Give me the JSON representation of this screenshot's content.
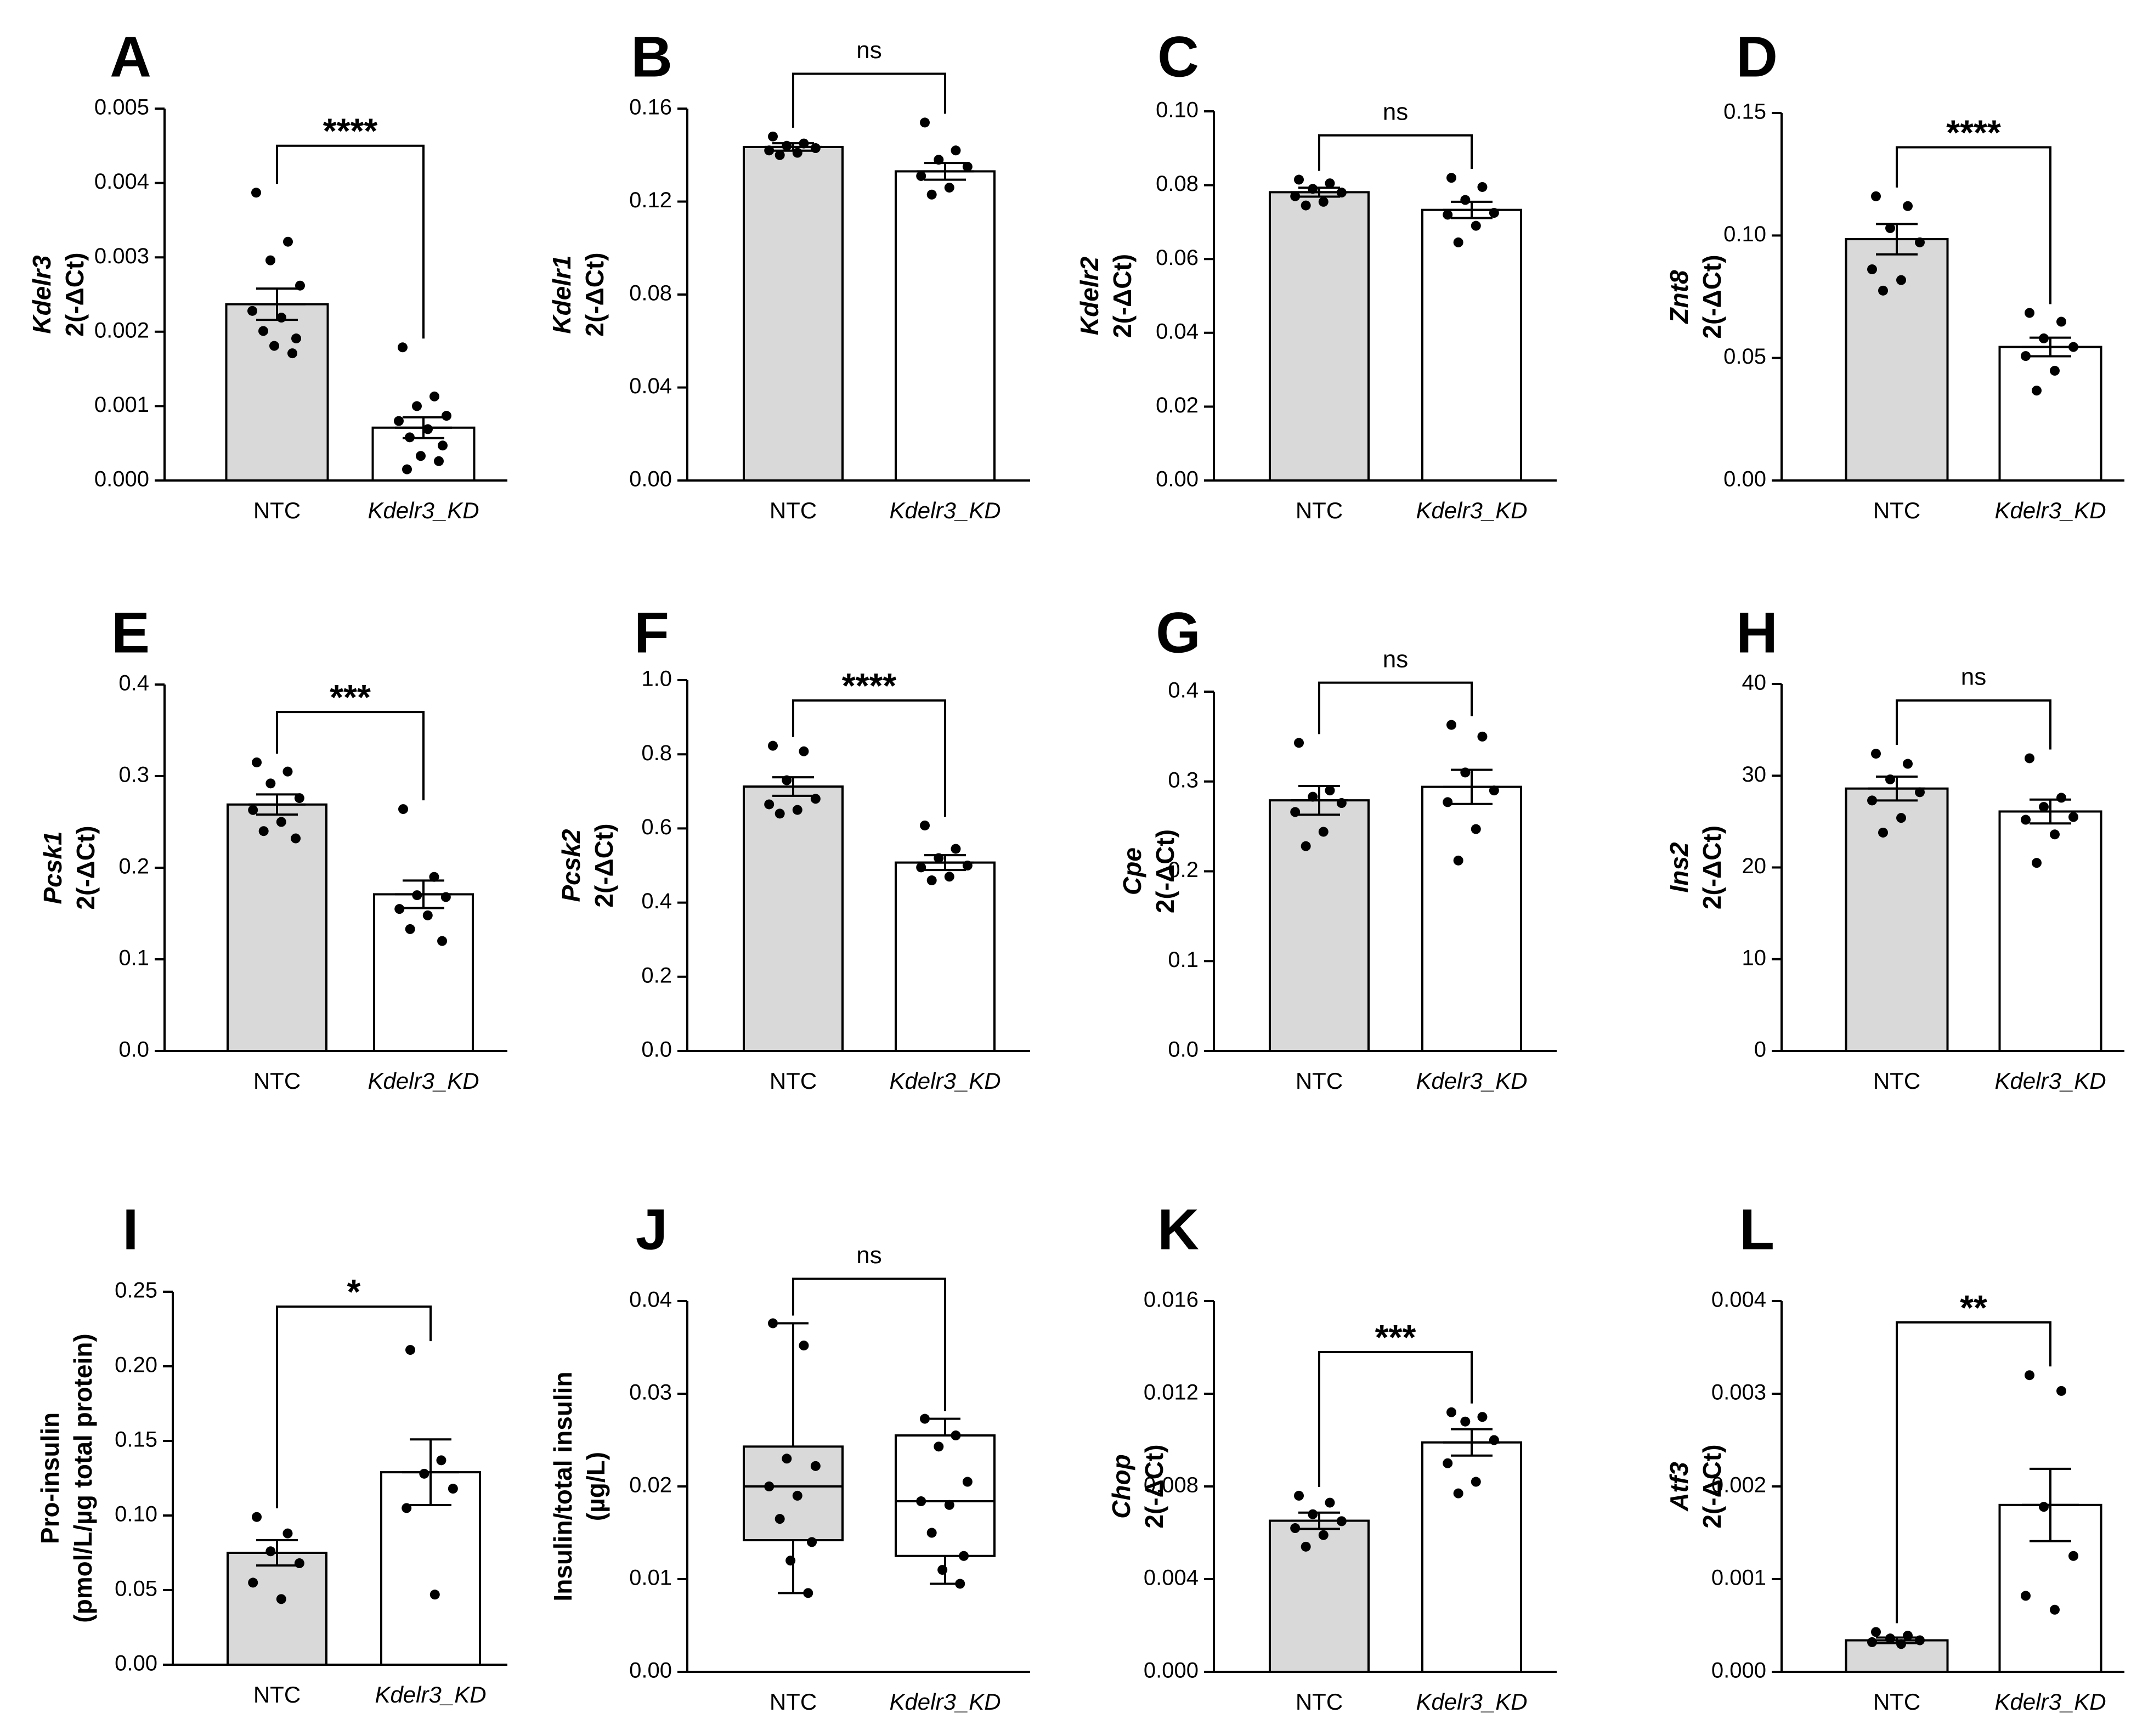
{
  "figure": {
    "style": {
      "bar_fill_ntc": "#d9d9d9",
      "bar_fill_kd": "#ffffff",
      "stroke": "#000000",
      "dot": "#000000"
    }
  },
  "chart_data": [
    {
      "id": "A",
      "panel_label": "A",
      "type": "bar",
      "ylabel": [
        "Kdelr3",
        "2(-ΔCt)"
      ],
      "ylabel_italic_first": true,
      "ylim": [
        0,
        0.005
      ],
      "ticks": [
        "0.000",
        "0.001",
        "0.002",
        "0.003",
        "0.004",
        "0.005"
      ],
      "tick_values": [
        0,
        0.001,
        0.002,
        0.003,
        0.004,
        0.005
      ],
      "categories": [
        "NTC",
        "Kdelr3_KD"
      ],
      "means": [
        0.00237,
        0.00071
      ],
      "sem": [
        0.00021,
        0.00014
      ],
      "points": [
        [
          0.00387,
          0.00321,
          0.00296,
          0.00262,
          0.00228,
          0.00219,
          0.00201,
          0.00191,
          0.00181,
          0.00171
        ],
        [
          0.00179,
          0.00113,
          0.001,
          0.00087,
          0.0008,
          0.00069,
          0.00058,
          0.00047,
          0.00033,
          0.00026,
          0.00015
        ]
      ],
      "significance": "****",
      "bracket_y": 0.0045
    },
    {
      "id": "B",
      "panel_label": "B",
      "type": "bar",
      "ylabel": [
        "Kdelr1",
        "2(-ΔCt)"
      ],
      "ylabel_italic_first": true,
      "ylim": [
        0,
        0.16
      ],
      "ticks": [
        "0.00",
        "0.04",
        "0.08",
        "0.12",
        "0.16"
      ],
      "tick_values": [
        0,
        0.04,
        0.08,
        0.12,
        0.16
      ],
      "categories": [
        "NTC",
        "Kdelr3_KD"
      ],
      "means": [
        0.1435,
        0.133
      ],
      "sem": [
        0.0016,
        0.0036
      ],
      "points": [
        [
          0.148,
          0.145,
          0.144,
          0.143,
          0.142,
          0.141,
          0.14
        ],
        [
          0.154,
          0.142,
          0.138,
          0.135,
          0.131,
          0.126,
          0.123
        ]
      ],
      "significance": "ns",
      "bracket_y": 0.175
    },
    {
      "id": "C",
      "panel_label": "C",
      "type": "bar",
      "ylabel": [
        "Kdelr2",
        "2(-ΔCt)"
      ],
      "ylabel_italic_first": true,
      "ylim": [
        0,
        0.1
      ],
      "ticks": [
        "0.00",
        "0.02",
        "0.04",
        "0.06",
        "0.08",
        "0.10"
      ],
      "tick_values": [
        0,
        0.02,
        0.04,
        0.06,
        0.08,
        0.1
      ],
      "categories": [
        "NTC",
        "Kdelr3_KD"
      ],
      "means": [
        0.0781,
        0.0733
      ],
      "sem": [
        0.0012,
        0.0022
      ],
      "points": [
        [
          0.0815,
          0.0805,
          0.079,
          0.078,
          0.077,
          0.0755,
          0.0745
        ],
        [
          0.082,
          0.0795,
          0.076,
          0.0725,
          0.072,
          0.069,
          0.0645
        ]
      ],
      "significance": "ns",
      "bracket_y": 0.0935
    },
    {
      "id": "D",
      "panel_label": "D",
      "type": "bar",
      "ylabel": [
        "Znt8",
        "2(-ΔCt)"
      ],
      "ylabel_italic_first": true,
      "ylim": [
        0,
        0.15
      ],
      "ticks": [
        "0.00",
        "0.05",
        "0.10",
        "0.15"
      ],
      "tick_values": [
        0,
        0.05,
        0.1,
        0.15
      ],
      "categories": [
        "NTC",
        "Kdelr3_KD"
      ],
      "means": [
        0.0985,
        0.0545
      ],
      "sem": [
        0.0062,
        0.0038
      ],
      "points": [
        [
          0.116,
          0.112,
          0.103,
          0.0972,
          0.0862,
          0.0818,
          0.0775
        ],
        [
          0.0684,
          0.0648,
          0.058,
          0.0545,
          0.0508,
          0.0448,
          0.0367
        ]
      ],
      "significance": "****",
      "bracket_y": 0.136
    },
    {
      "id": "E",
      "panel_label": "E",
      "type": "bar",
      "ylabel": [
        "Pcsk1",
        "2(-ΔCt)"
      ],
      "ylabel_italic_first": true,
      "ylim": [
        0,
        0.4
      ],
      "ticks": [
        "0.0",
        "0.1",
        "0.2",
        "0.3",
        "0.4"
      ],
      "tick_values": [
        0,
        0.1,
        0.2,
        0.3,
        0.4
      ],
      "categories": [
        "NTC",
        "Kdelr3_KD"
      ],
      "means": [
        0.269,
        0.171
      ],
      "sem": [
        0.011,
        0.015
      ],
      "points": [
        [
          0.315,
          0.305,
          0.292,
          0.276,
          0.263,
          0.25,
          0.24,
          0.232
        ],
        [
          0.264,
          0.19,
          0.17,
          0.168,
          0.155,
          0.148,
          0.133,
          0.12
        ]
      ],
      "significance": "***",
      "bracket_y": 0.37
    },
    {
      "id": "F",
      "panel_label": "F",
      "type": "bar",
      "ylabel": [
        "Pcsk2",
        "2(-ΔCt)"
      ],
      "ylabel_italic_first": true,
      "ylim": [
        0,
        1.0
      ],
      "ticks": [
        "0.0",
        "0.2",
        "0.4",
        "0.6",
        "0.8",
        "1.0"
      ],
      "tick_values": [
        0,
        0.2,
        0.4,
        0.6,
        0.8,
        1.0
      ],
      "categories": [
        "NTC",
        "Kdelr3_KD"
      ],
      "means": [
        0.713,
        0.508
      ],
      "sem": [
        0.025,
        0.02
      ],
      "points": [
        [
          0.823,
          0.808,
          0.73,
          0.68,
          0.665,
          0.65,
          0.64
        ],
        [
          0.608,
          0.545,
          0.52,
          0.5,
          0.495,
          0.47,
          0.46
        ]
      ],
      "significance": "****",
      "bracket_y": 0.945
    },
    {
      "id": "G",
      "panel_label": "G",
      "type": "bar",
      "ylabel": [
        "Cpe",
        "2(-ΔCt)"
      ],
      "ylabel_italic_first": true,
      "ylim": [
        0,
        0.4
      ],
      "ticks": [
        "0.0",
        "0.1",
        "0.2",
        "0.3",
        "0.4"
      ],
      "tick_values": [
        0,
        0.1,
        0.2,
        0.3,
        0.4
      ],
      "categories": [
        "NTC",
        "Kdelr3_KD"
      ],
      "means": [
        0.279,
        0.294
      ],
      "sem": [
        0.016,
        0.019
      ],
      "points": [
        [
          0.343,
          0.29,
          0.283,
          0.276,
          0.266,
          0.244,
          0.228
        ],
        [
          0.363,
          0.35,
          0.31,
          0.29,
          0.277,
          0.247,
          0.212
        ]
      ],
      "significance": "ns",
      "bracket_y": 0.41
    },
    {
      "id": "H",
      "panel_label": "H",
      "type": "bar",
      "ylabel": [
        "Ins2",
        "2(-ΔCt)"
      ],
      "ylabel_italic_first": true,
      "ylim": [
        0,
        40
      ],
      "ticks": [
        "0",
        "10",
        "20",
        "30",
        "40"
      ],
      "tick_values": [
        0,
        10,
        20,
        30,
        40
      ],
      "categories": [
        "NTC",
        "Kdelr3_KD"
      ],
      "means": [
        28.6,
        26.1
      ],
      "sem": [
        1.3,
        1.3
      ],
      "points": [
        [
          32.4,
          31.3,
          29.6,
          28.2,
          27.3,
          25.4,
          23.8
        ],
        [
          31.9,
          27.6,
          26.6,
          25.5,
          25.2,
          23.6,
          20.5
        ]
      ],
      "significance": "ns",
      "bracket_y": 38.2
    },
    {
      "id": "I",
      "panel_label": "I",
      "type": "bar",
      "ylabel": [
        "Pro-insulin",
        "(pmol/L/µg total protein)"
      ],
      "ylabel_italic_first": false,
      "ylim": [
        0,
        0.25
      ],
      "ticks": [
        "0.00",
        "0.05",
        "0.10",
        "0.15",
        "0.20",
        "0.25"
      ],
      "tick_values": [
        0,
        0.05,
        0.1,
        0.15,
        0.2,
        0.25
      ],
      "categories": [
        "NTC",
        "Kdelr3_KD"
      ],
      "means": [
        0.075,
        0.129
      ],
      "sem": [
        0.0085,
        0.022
      ],
      "points": [
        [
          0.099,
          0.088,
          0.076,
          0.068,
          0.055,
          0.044
        ],
        [
          0.211,
          0.137,
          0.128,
          0.118,
          0.105,
          0.047
        ]
      ],
      "significance": "*",
      "bracket_y": 0.24
    },
    {
      "id": "J",
      "panel_label": "J",
      "type": "box",
      "ylabel": [
        "Insulin/total insulin",
        "(µg/L)"
      ],
      "ylabel_italic_first": false,
      "ylim": [
        0,
        0.04
      ],
      "ticks": [
        "0.00",
        "0.01",
        "0.02",
        "0.03",
        "0.04"
      ],
      "tick_values": [
        0,
        0.01,
        0.02,
        0.03,
        0.04
      ],
      "categories": [
        "NTC",
        "Kdelr3_KD"
      ],
      "boxes": [
        {
          "min": 0.0085,
          "q1": 0.0142,
          "median": 0.02,
          "q3": 0.0243,
          "max": 0.0376
        },
        {
          "min": 0.0095,
          "q1": 0.0125,
          "median": 0.0184,
          "q3": 0.0255,
          "max": 0.0273
        }
      ],
      "points": [
        [
          0.0376,
          0.0352,
          0.023,
          0.0222,
          0.02,
          0.019,
          0.0165,
          0.014,
          0.012,
          0.0085
        ],
        [
          0.0273,
          0.0255,
          0.0243,
          0.0205,
          0.0184,
          0.018,
          0.015,
          0.0125,
          0.011,
          0.0095
        ]
      ],
      "significance": "ns",
      "bracket_y": 0.0424
    },
    {
      "id": "K",
      "panel_label": "K",
      "type": "bar",
      "ylabel": [
        "Chop",
        "2(-ΔCt)"
      ],
      "ylabel_italic_first": true,
      "ylim": [
        0,
        0.016
      ],
      "ticks": [
        "0.000",
        "0.004",
        "0.008",
        "0.012",
        "0.016"
      ],
      "tick_values": [
        0,
        0.004,
        0.008,
        0.012,
        0.016
      ],
      "categories": [
        "NTC",
        "Kdelr3_KD"
      ],
      "means": [
        0.00652,
        0.0099
      ],
      "sem": [
        0.00035,
        0.00057
      ],
      "points": [
        [
          0.0076,
          0.0073,
          0.0068,
          0.0065,
          0.0062,
          0.0059,
          0.0054
        ],
        [
          0.0112,
          0.011,
          0.0108,
          0.01,
          0.009,
          0.0082,
          0.0077
        ]
      ],
      "significance": "***",
      "bracket_y": 0.0138
    },
    {
      "id": "L",
      "panel_label": "L",
      "type": "bar",
      "ylabel": [
        "Atf3",
        "2(-ΔCt)"
      ],
      "ylabel_italic_first": true,
      "ylim": [
        0,
        0.004
      ],
      "ticks": [
        "0.000",
        "0.001",
        "0.002",
        "0.003",
        "0.004"
      ],
      "tick_values": [
        0,
        0.001,
        0.002,
        0.003,
        0.004
      ],
      "categories": [
        "NTC",
        "Kdelr3_KD"
      ],
      "means": [
        0.00034,
        0.0018
      ],
      "sem": [
        3e-05,
        0.00039
      ],
      "points": [
        [
          0.00043,
          0.00039,
          0.00036,
          0.00034,
          0.00032,
          0.0003
        ],
        [
          0.0032,
          0.00303,
          0.00178,
          0.00125,
          0.00082,
          0.00067
        ]
      ],
      "significance": "**",
      "bracket_y": 0.00377
    }
  ]
}
